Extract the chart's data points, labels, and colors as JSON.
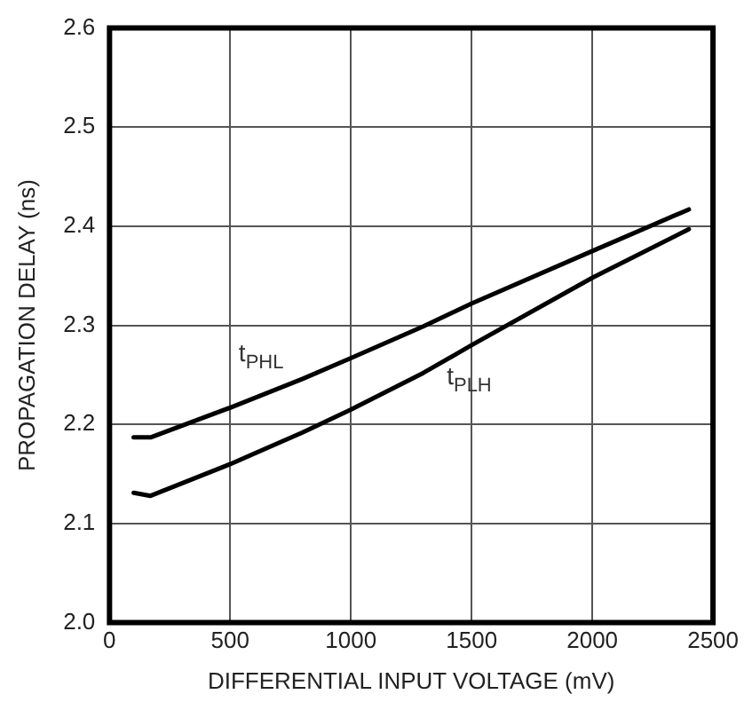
{
  "chart_data": {
    "type": "line",
    "xlabel": "DIFFERENTIAL INPUT VOLTAGE (mV)",
    "ylabel": "PROPAGATION DELAY (ns)",
    "x": [
      100,
      170,
      500,
      800,
      1000,
      1300,
      1500,
      2000,
      2400
    ],
    "series": [
      {
        "name": "t$_{PHL}$",
        "color": "#000000",
        "values": [
          2.187,
          2.187,
          2.217,
          2.246,
          2.267,
          2.299,
          2.322,
          2.375,
          2.417
        ]
      },
      {
        "name": "t$_{PLH}$",
        "color": "#000000",
        "values": [
          2.131,
          2.128,
          2.16,
          2.192,
          2.215,
          2.252,
          2.28,
          2.348,
          2.397
        ]
      }
    ],
    "xlim": [
      0,
      2500
    ],
    "xticks": [
      0,
      500,
      1000,
      1500,
      2000,
      2500
    ],
    "ylim": [
      2.0,
      2.6
    ],
    "yticks": [
      {
        "value": 2.0,
        "label": "2.0"
      },
      {
        "value": 2.1,
        "label": "2.1"
      },
      {
        "value": 2.2,
        "label": "2.2"
      },
      {
        "value": 2.3,
        "label": "2.3"
      },
      {
        "value": 2.4,
        "label": "2.4"
      },
      {
        "value": 2.5,
        "label": "2.5"
      },
      {
        "value": 2.6,
        "label": "2.6"
      }
    ],
    "grid": true,
    "legend": false,
    "marker": "none",
    "line_style": "solid"
  }
}
